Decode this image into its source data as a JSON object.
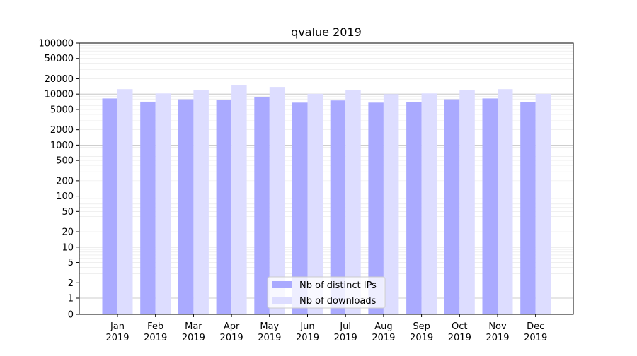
{
  "chart_data": {
    "type": "bar",
    "title": "qvalue 2019",
    "xlabel": "",
    "ylabel": "",
    "yscale": "symlog",
    "ylim": [
      0,
      100000
    ],
    "y_ticks": [
      0,
      1,
      2,
      5,
      10,
      20,
      50,
      100,
      200,
      500,
      1000,
      2000,
      5000,
      10000,
      20000,
      50000,
      100000
    ],
    "grid": true,
    "legend_position": "bottom-center",
    "categories": [
      [
        "Jan",
        "2019"
      ],
      [
        "Feb",
        "2019"
      ],
      [
        "Mar",
        "2019"
      ],
      [
        "Apr",
        "2019"
      ],
      [
        "May",
        "2019"
      ],
      [
        "Jun",
        "2019"
      ],
      [
        "Jul",
        "2019"
      ],
      [
        "Aug",
        "2019"
      ],
      [
        "Sep",
        "2019"
      ],
      [
        "Oct",
        "2019"
      ],
      [
        "Nov",
        "2019"
      ],
      [
        "Dec",
        "2019"
      ]
    ],
    "series": [
      {
        "name": "Nb of distinct IPs",
        "color": "#aaaaff",
        "values": [
          8200,
          7100,
          7900,
          7700,
          8600,
          6800,
          7500,
          6800,
          7000,
          7900,
          8200,
          7000
        ]
      },
      {
        "name": "Nb of downloads",
        "color": "#ddddff",
        "values": [
          12500,
          10300,
          12100,
          15000,
          13800,
          10100,
          11800,
          10000,
          10300,
          12100,
          12500,
          10100
        ]
      }
    ]
  }
}
